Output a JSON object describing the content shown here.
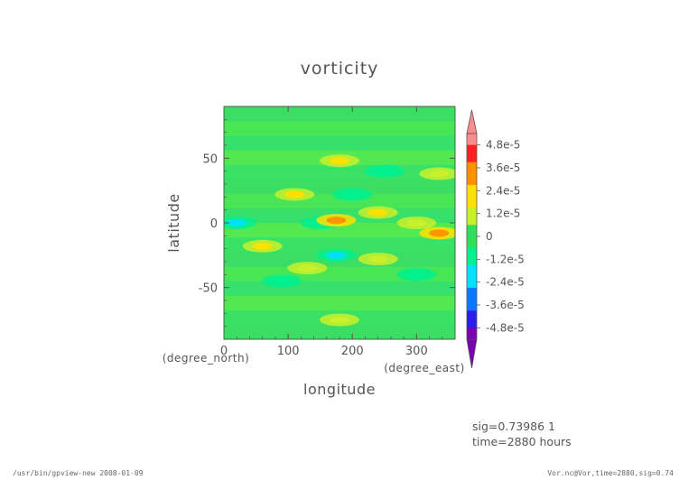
{
  "chart_data": {
    "type": "heatmap",
    "title": "vorticity",
    "xlabel": "longitude",
    "ylabel": "latitude",
    "xunit": "(degree_east)",
    "yunit": "(degree_north)",
    "xlim": [
      0,
      360
    ],
    "ylim": [
      -90,
      90
    ],
    "x_ticks": [
      "0",
      "100",
      "200",
      "300"
    ],
    "x_tick_values": [
      0,
      100,
      200,
      300
    ],
    "y_ticks": [
      "50",
      "0",
      "-50"
    ],
    "y_tick_values": [
      50,
      0,
      -50
    ],
    "grid": false,
    "colorbar": {
      "placement": "right",
      "tick_labels": [
        "4.8e-5",
        "3.6e-5",
        "2.4e-5",
        "1.2e-5",
        "0",
        "-1.2e-5",
        "-2.4e-5",
        "-3.6e-5",
        "-4.8e-5"
      ],
      "tick_values": [
        4.8e-05,
        3.6e-05,
        2.4e-05,
        1.2e-05,
        0,
        -1.2e-05,
        -2.4e-05,
        -3.6e-05,
        -4.8e-05
      ],
      "range": [
        -5.4e-05,
        5.4e-05
      ],
      "colors_low_to_high": [
        "#7a00b4",
        "#2a1ee8",
        "#0a78ff",
        "#00e0ff",
        "#00f090",
        "#2ee05a",
        "#c8f02a",
        "#ffe000",
        "#ff9000",
        "#ff2020",
        "#ff8c8c"
      ]
    },
    "features": [
      {
        "lon": 20,
        "lat": 0,
        "value": -1.8e-05
      },
      {
        "lon": 60,
        "lat": -18,
        "value": 1.8e-05
      },
      {
        "lon": 110,
        "lat": 22,
        "value": 2.4e-05
      },
      {
        "lon": 130,
        "lat": -35,
        "value": 1.6e-05
      },
      {
        "lon": 150,
        "lat": 0,
        "value": -1.4e-05
      },
      {
        "lon": 175,
        "lat": 2,
        "value": 3e-05
      },
      {
        "lon": 175,
        "lat": -25,
        "value": -2.4e-05
      },
      {
        "lon": 180,
        "lat": 48,
        "value": 2e-05
      },
      {
        "lon": 200,
        "lat": 22,
        "value": -1.6e-05
      },
      {
        "lon": 240,
        "lat": 8,
        "value": 2e-05
      },
      {
        "lon": 250,
        "lat": 40,
        "value": -1e-05
      },
      {
        "lon": 300,
        "lat": 0,
        "value": 1e-05
      },
      {
        "lon": 335,
        "lat": -8,
        "value": 3e-05
      },
      {
        "lon": 335,
        "lat": 38,
        "value": 1.6e-05
      },
      {
        "lon": 240,
        "lat": -28,
        "value": 1.2e-05
      },
      {
        "lon": 180,
        "lat": -75,
        "value": 1.4e-05
      },
      {
        "lon": 90,
        "lat": -45,
        "value": -1.2e-05
      },
      {
        "lon": 300,
        "lat": -40,
        "value": -1.2e-05
      }
    ]
  },
  "annotations": {
    "sig": "sig=0.73986  1",
    "time": "time=2880  hours"
  },
  "footer": {
    "left": "/usr/bin/gpview-new  2008-01-09",
    "right": "Vor.nc@Vor,time=2880,sig=0.74"
  }
}
